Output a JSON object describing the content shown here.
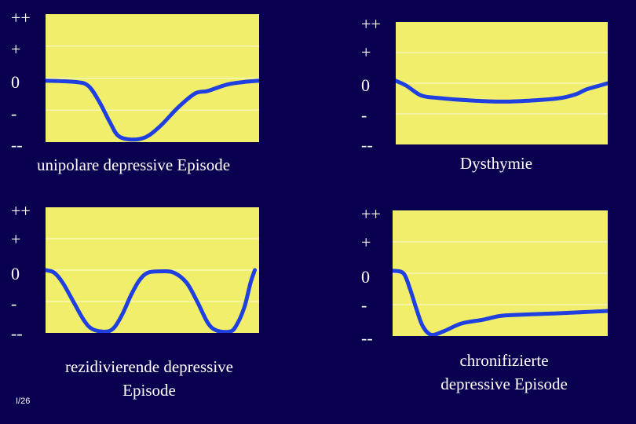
{
  "axis_labels": [
    "++",
    "+",
    "0",
    "-",
    "--"
  ],
  "colors": {
    "background": "#0a0050",
    "plot": "#f0ee6a",
    "curve": "#1f3fe0",
    "grid": "#ffffff"
  },
  "panels": [
    {
      "caption": "unipolare depressive Episode",
      "curve": [
        [
          0,
          0.52
        ],
        [
          0.14,
          0.53
        ],
        [
          0.2,
          0.56
        ],
        [
          0.25,
          0.68
        ],
        [
          0.3,
          0.84
        ],
        [
          0.34,
          0.95
        ],
        [
          0.4,
          0.98
        ],
        [
          0.47,
          0.96
        ],
        [
          0.54,
          0.87
        ],
        [
          0.62,
          0.73
        ],
        [
          0.7,
          0.62
        ],
        [
          0.76,
          0.6
        ],
        [
          0.85,
          0.55
        ],
        [
          0.93,
          0.53
        ],
        [
          1,
          0.52
        ]
      ]
    },
    {
      "caption": "Dysthymie",
      "curve": [
        [
          0,
          0.48
        ],
        [
          0.05,
          0.52
        ],
        [
          0.12,
          0.6
        ],
        [
          0.2,
          0.62
        ],
        [
          0.35,
          0.64
        ],
        [
          0.5,
          0.65
        ],
        [
          0.65,
          0.64
        ],
        [
          0.78,
          0.62
        ],
        [
          0.85,
          0.59
        ],
        [
          0.9,
          0.55
        ],
        [
          0.96,
          0.52
        ],
        [
          1,
          0.5
        ]
      ]
    },
    {
      "caption": "rezidivierende depressive Episode",
      "curve": [
        [
          0,
          0.5
        ],
        [
          0.04,
          0.52
        ],
        [
          0.08,
          0.6
        ],
        [
          0.13,
          0.75
        ],
        [
          0.18,
          0.9
        ],
        [
          0.22,
          0.97
        ],
        [
          0.28,
          0.99
        ],
        [
          0.32,
          0.96
        ],
        [
          0.36,
          0.85
        ],
        [
          0.4,
          0.7
        ],
        [
          0.44,
          0.58
        ],
        [
          0.48,
          0.52
        ],
        [
          0.54,
          0.51
        ],
        [
          0.6,
          0.52
        ],
        [
          0.66,
          0.6
        ],
        [
          0.71,
          0.75
        ],
        [
          0.76,
          0.92
        ],
        [
          0.8,
          0.98
        ],
        [
          0.86,
          0.99
        ],
        [
          0.89,
          0.95
        ],
        [
          0.93,
          0.8
        ],
        [
          0.96,
          0.6
        ],
        [
          0.98,
          0.5
        ]
      ]
    },
    {
      "caption": "chronifizierte depressive Episode",
      "curve": [
        [
          0,
          0.48
        ],
        [
          0.05,
          0.5
        ],
        [
          0.08,
          0.62
        ],
        [
          0.11,
          0.78
        ],
        [
          0.14,
          0.92
        ],
        [
          0.18,
          0.99
        ],
        [
          0.24,
          0.96
        ],
        [
          0.32,
          0.9
        ],
        [
          0.42,
          0.87
        ],
        [
          0.5,
          0.84
        ],
        [
          0.6,
          0.83
        ],
        [
          0.75,
          0.82
        ],
        [
          0.88,
          0.81
        ],
        [
          1,
          0.8
        ]
      ]
    }
  ],
  "slide_number": "I/26"
}
